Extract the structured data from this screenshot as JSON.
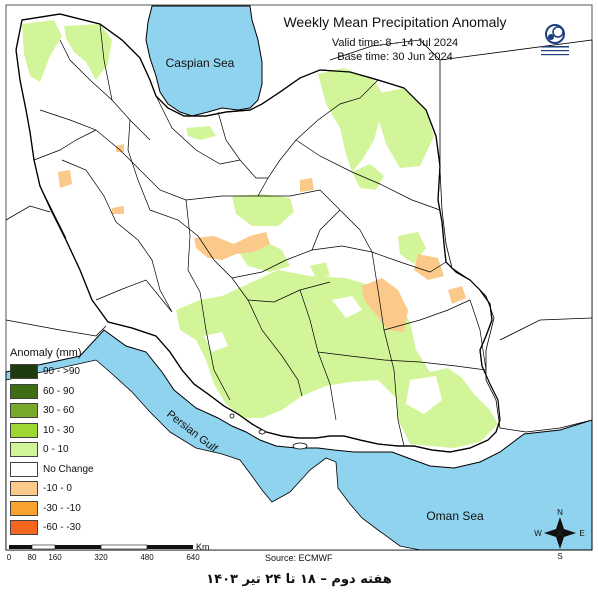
{
  "header": {
    "title": "Weekly Mean Precipitation Anomaly",
    "valid_time": "Valid time: 8 - 14 Jul 2024",
    "base_time": "Base time: 30 Jun 2024"
  },
  "water_labels": {
    "caspian": "Caspian Sea",
    "gulf": "Persian Gulf",
    "oman": "Oman Sea"
  },
  "legend": {
    "title": "Anomaly (mm)",
    "items": [
      {
        "label": "90 - >90",
        "color": "#1f3a0c"
      },
      {
        "label": "60 - 90",
        "color": "#3f6d13"
      },
      {
        "label": "30 - 60",
        "color": "#79a928"
      },
      {
        "label": "10 - 30",
        "color": "#9ed632"
      },
      {
        "label": "0 - 10",
        "color": "#d3f59a"
      },
      {
        "label": "No Change",
        "color": "#ffffff"
      },
      {
        "label": "-10 - 0",
        "color": "#fbc98a"
      },
      {
        "label": "-30 - -10",
        "color": "#f9a22e"
      },
      {
        "label": "-60 - -30",
        "color": "#f5661e"
      }
    ]
  },
  "scale": {
    "unit": "Km",
    "ticks": [
      "0",
      "80",
      "160",
      "320",
      "480",
      "640"
    ]
  },
  "compass": {
    "n": "N",
    "s": "S",
    "e": "E",
    "w": "W"
  },
  "source": "Source: ECMWF",
  "caption": "هفته دوم – ۱۸ تا ۲۴ تیر ۱۴۰۳",
  "colors": {
    "water": "#8fd3ee",
    "land": "#ffffff",
    "border": "#000000"
  },
  "icons": {
    "logo": "organization-logo-icon",
    "compass": "compass-rose-icon"
  }
}
